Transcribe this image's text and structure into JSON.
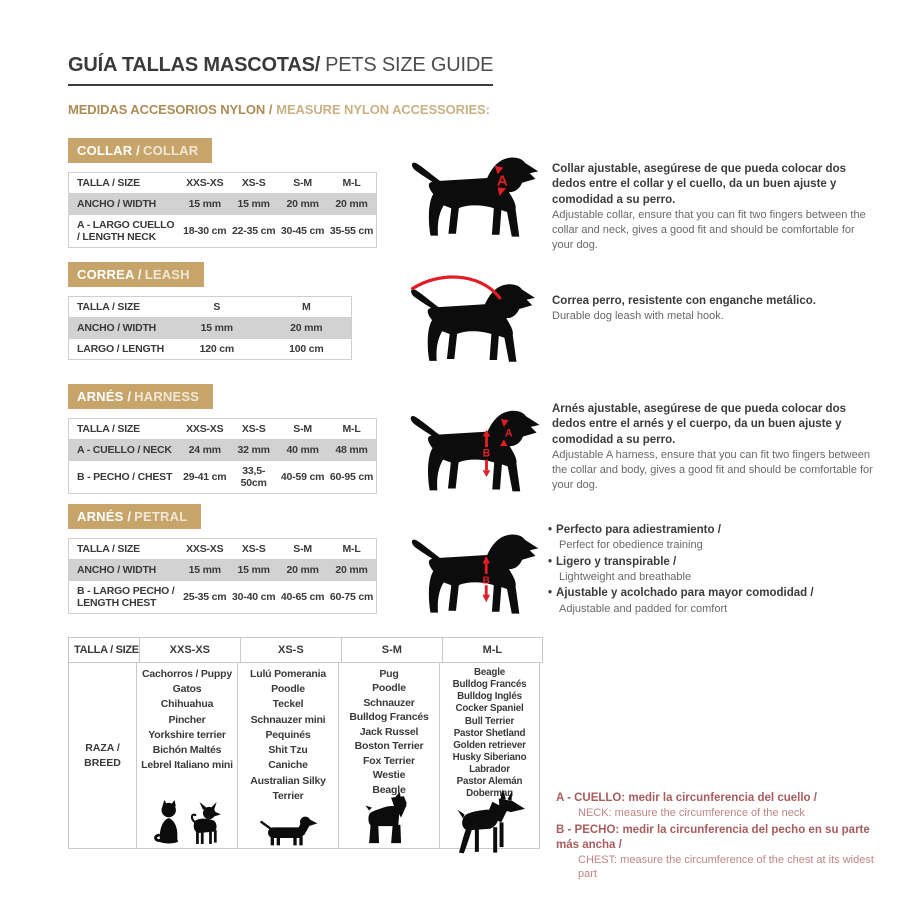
{
  "page": {
    "title": {
      "es": "GUÍA TALLAS MASCOTAS/",
      "en": "PETS SIZE GUIDE"
    },
    "subtitle": {
      "es": "MEDIDAS ACCESORIOS NYLON /",
      "en": "MEASURE NYLON ACCESSORIES:"
    },
    "bullet": "•"
  },
  "colors": {
    "accent_tan": "#c7a469",
    "accent_red": "#e11e26",
    "note_red": "#a85c5c",
    "row_shade": "#d2d2d2",
    "silhouette_black": "#0c0c0c"
  },
  "sections": [
    {
      "id": "collar",
      "heading": {
        "es": "COLLAR /",
        "en": "COLLAR"
      },
      "table": {
        "header": [
          "TALLA / SIZE",
          "XXS-XS",
          "XS-S",
          "S-M",
          "M-L"
        ],
        "rows": [
          {
            "label": "ANCHO / WIDTH",
            "values": [
              "15 mm",
              "15 mm",
              "20 mm",
              "20 mm"
            ]
          },
          {
            "label": "A - LARGO CUELLO / LENGTH NECK",
            "values": [
              "18-30 cm",
              "22-35 cm",
              "30-45 cm",
              "35-55 cm"
            ]
          }
        ]
      },
      "illustration": "dog-with-collar",
      "marks": {
        "neck": "A"
      },
      "description": {
        "es": "Collar ajustable, asegúrese de que pueda colocar dos dedos entre el collar y el cuello, da un buen ajuste y comodidad a su perro.",
        "en": "Adjustable collar, ensure that you can fit two fingers between the collar and neck, gives a good fit and should be comfortable for your dog."
      }
    },
    {
      "id": "correa",
      "heading": {
        "es": "CORREA /",
        "en": "LEASH"
      },
      "table": {
        "header": [
          "TALLA / SIZE",
          "S",
          "M"
        ],
        "rows": [
          {
            "label": "ANCHO / WIDTH",
            "values": [
              "15 mm",
              "20 mm"
            ]
          },
          {
            "label": "LARGO / LENGTH",
            "values": [
              "120 cm",
              "100 cm"
            ]
          }
        ]
      },
      "illustration": "dog-with-leash",
      "description": {
        "es": "Correa perro, resistente con enganche metálico.",
        "en": "Durable dog leash with metal hook."
      }
    },
    {
      "id": "harness",
      "heading": {
        "es": "ARNÉS /",
        "en": "HARNESS"
      },
      "table": {
        "header": [
          "TALLA / SIZE",
          "XXS-XS",
          "XS-S",
          "S-M",
          "M-L"
        ],
        "rows": [
          {
            "label": "A - CUELLO / NECK",
            "values": [
              "24 mm",
              "32 mm",
              "40 mm",
              "48 mm"
            ]
          },
          {
            "label": "B - PECHO / CHEST",
            "values": [
              "29-41 cm",
              "33,5-50cm",
              "40-59 cm",
              "60-95 cm"
            ]
          }
        ]
      },
      "illustration": "dog-with-harness",
      "marks": {
        "neck": "A",
        "chest": "B"
      },
      "description": {
        "es": "Arnés ajustable, asegúrese de que pueda colocar dos dedos entre el arnés y el cuerpo, da un buen ajuste y comodidad a su perro.",
        "en": "Adjustable A harness, ensure that you can fit two fingers between the collar and body, gives a good fit and should be comfortable for your dog."
      }
    },
    {
      "id": "petral",
      "heading": {
        "es": "ARNÉS /",
        "en": "PETRAL"
      },
      "table": {
        "header": [
          "TALLA / SIZE",
          "XXS-XS",
          "XS-S",
          "S-M",
          "M-L"
        ],
        "rows": [
          {
            "label": "ANCHO / WIDTH",
            "values": [
              "15 mm",
              "15 mm",
              "20 mm",
              "20 mm"
            ]
          },
          {
            "label": "B - LARGO PECHO / LENGTH CHEST",
            "values": [
              "25-35 cm",
              "30-40 cm",
              "40-65 cm",
              "60-75 cm"
            ]
          }
        ]
      },
      "illustration": "dog-with-petral",
      "marks": {
        "chest": "B"
      },
      "features": [
        {
          "es": "Perfecto para adiestramiento /",
          "en": "Perfect for obedience training"
        },
        {
          "es": "Ligero y transpirable /",
          "en": "Lightweight and breathable"
        },
        {
          "es": "Ajustable y acolchado para mayor comodidad /",
          "en": "Adjustable and padded for comfort"
        }
      ]
    }
  ],
  "breeds_table": {
    "header": [
      "TALLA /  SIZE",
      "XXS-XS",
      "XS-S",
      "S-M",
      "M-L"
    ],
    "row_label": "RAZA / BREED",
    "columns": [
      {
        "size": "XXS-XS",
        "breeds": [
          "Cachorros / Puppy",
          "Gatos",
          "Chihuahua",
          "Pincher",
          "Yorkshire terrier",
          "Bichón Maltés",
          "Lebrel Italiano mini"
        ],
        "silhouettes": [
          "cat",
          "chihuahua"
        ]
      },
      {
        "size": "XS-S",
        "breeds": [
          "Lulú Pomerania",
          "Poodle",
          "Teckel",
          "Schnauzer mini",
          "Pequinés",
          "Shit Tzu",
          "Caniche",
          "Australian Silky Terrier"
        ],
        "silhouettes": [
          "dachshund"
        ]
      },
      {
        "size": "S-M",
        "breeds": [
          "Pug",
          "Poodle",
          "Schnauzer",
          "Bulldog Francés",
          "Jack Russel",
          "Boston Terrier",
          "Fox Terrier",
          "Westie",
          "Beagle"
        ],
        "silhouettes": [
          "schnauzer"
        ]
      },
      {
        "size": "M-L",
        "breeds": [
          "Beagle",
          "Bulldog Francés",
          "Bulldog Inglés",
          "Cocker Spaniel",
          "Bull Terrier",
          "Pastor Shetland",
          "Golden retriever",
          "Husky Siberiano",
          "Labrador",
          "Pastor Alemán",
          "Doberman"
        ],
        "silhouettes": [
          "doberman"
        ]
      }
    ]
  },
  "measure_notes": [
    {
      "es": "A - CUELLO: medir la circunferencia del cuello /",
      "en": "NECK: measure the circumference of the neck"
    },
    {
      "es": "B - PECHO: medir la circunferencia del pecho en su parte más ancha /",
      "en": "CHEST: measure the circumference of the chest at its widest part"
    }
  ]
}
